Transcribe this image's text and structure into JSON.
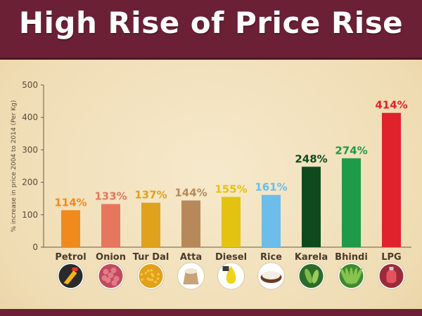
{
  "header": {
    "title": "High Rise of Price Rise"
  },
  "chart_data": {
    "type": "bar",
    "title": "High Rise of Price Rise",
    "ylabel": "% increase in price 2004 to 2014 (Per Kg)",
    "xlabel": "",
    "ylim": [
      0,
      500
    ],
    "yticks": [
      0,
      100,
      200,
      300,
      400,
      500
    ],
    "grid": false,
    "categories": [
      "Petrol",
      "Onion",
      "Tur Dal",
      "Atta",
      "Diesel",
      "Rice",
      "Karela",
      "Bhindi",
      "LPG"
    ],
    "values": [
      114,
      133,
      137,
      144,
      155,
      161,
      248,
      274,
      414
    ],
    "value_labels": [
      "114%",
      "133%",
      "137%",
      "144%",
      "155%",
      "161%",
      "248%",
      "274%",
      "414%"
    ],
    "bar_colors": [
      "#f08a1c",
      "#e6765e",
      "#e0a21c",
      "#b7895a",
      "#e3c310",
      "#6cbdea",
      "#0f4a1e",
      "#1e9a48",
      "#e0222c"
    ],
    "label_colors": [
      "#f08a1c",
      "#e6765e",
      "#e0a21c",
      "#b7895a",
      "#e3c310",
      "#6cbdea",
      "#0f4a1e",
      "#1e9a48",
      "#e0222c"
    ],
    "icons": [
      "fuel-nozzle-icon",
      "onion-icon",
      "tur-dal-icon",
      "atta-flour-icon",
      "diesel-drop-icon",
      "rice-bowl-icon",
      "karela-icon",
      "bhindi-icon",
      "lpg-icon"
    ]
  }
}
